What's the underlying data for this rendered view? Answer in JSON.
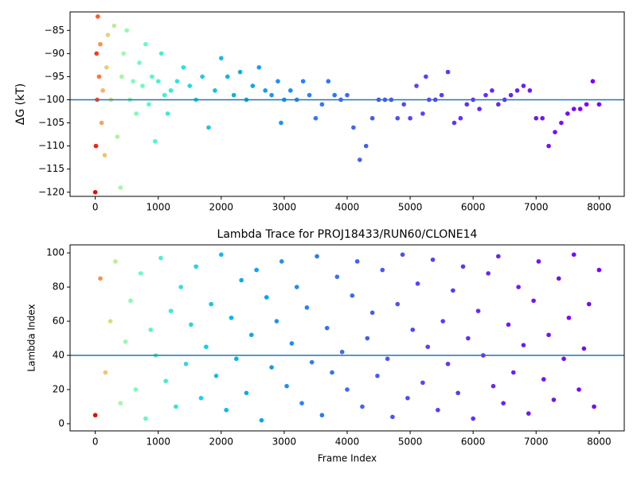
{
  "chart_data": [
    {
      "type": "scatter",
      "ylabel": "ΔG (kT)",
      "colormap": "rainbow_r",
      "x": [
        0,
        10,
        20,
        30,
        40,
        60,
        80,
        100,
        120,
        150,
        180,
        200,
        250,
        300,
        350,
        400,
        420,
        450,
        500,
        550,
        600,
        650,
        700,
        750,
        800,
        850,
        900,
        950,
        1000,
        1050,
        1100,
        1150,
        1200,
        1300,
        1400,
        1500,
        1600,
        1700,
        1800,
        1900,
        2000,
        2100,
        2200,
        2300,
        2400,
        2500,
        2600,
        2700,
        2800,
        2900,
        2950,
        3000,
        3100,
        3200,
        3300,
        3400,
        3500,
        3600,
        3700,
        3800,
        3900,
        4000,
        4100,
        4200,
        4300,
        4400,
        4500,
        4600,
        4700,
        4800,
        4900,
        5000,
        5100,
        5200,
        5250,
        5300,
        5400,
        5500,
        5600,
        5700,
        5800,
        5900,
        6000,
        6100,
        6200,
        6300,
        6400,
        6500,
        6600,
        6700,
        6800,
        6900,
        7000,
        7100,
        7200,
        7300,
        7400,
        7500,
        7600,
        7700,
        7800,
        7900,
        8000
      ],
      "values": [
        -120,
        -110,
        -90,
        -100,
        -82,
        -95,
        -88,
        -105,
        -98,
        -112,
        -93,
        -86,
        -100,
        -84,
        -108,
        -119,
        -95,
        -90,
        -85,
        -100,
        -96,
        -103,
        -92,
        -97,
        -88,
        -101,
        -95,
        -109,
        -96,
        -90,
        -99,
        -103,
        -98,
        -96,
        -93,
        -97,
        -100,
        -95,
        -106,
        -98,
        -91,
        -95,
        -99,
        -94,
        -100,
        -97,
        -93,
        -98,
        -99,
        -96,
        -105,
        -100,
        -98,
        -100,
        -96,
        -99,
        -104,
        -101,
        -96,
        -99,
        -100,
        -99,
        -106,
        -113,
        -110,
        -104,
        -100,
        -100,
        -100,
        -104,
        -101,
        -104,
        -97,
        -103,
        -95,
        -100,
        -100,
        -99,
        -94,
        -105,
        -104,
        -101,
        -100,
        -102,
        -99,
        -98,
        -101,
        -100,
        -99,
        -98,
        -97,
        -98,
        -104,
        -104,
        -110,
        -107,
        -105,
        -103,
        -102,
        -102,
        -101,
        -96,
        -101
      ],
      "hline": -100,
      "xlim": [
        -400,
        8400
      ],
      "ylim": [
        -120.9,
        -81.0
      ],
      "xticks": [
        0,
        1000,
        2000,
        3000,
        4000,
        5000,
        6000,
        7000,
        8000
      ],
      "yticks": [
        {
          "value": -85,
          "label": "−85"
        },
        {
          "value": -90,
          "label": "−90"
        },
        {
          "value": -95,
          "label": "−95"
        },
        {
          "value": -100,
          "label": "−100"
        },
        {
          "value": -105,
          "label": "−105"
        },
        {
          "value": -110,
          "label": "−110"
        },
        {
          "value": -115,
          "label": "−115"
        },
        {
          "value": -120,
          "label": "−120"
        }
      ]
    },
    {
      "type": "scatter",
      "title": "Lambda Trace for PROJ18433/RUN60/CLONE14",
      "xlabel": "Frame Index",
      "ylabel": "Lambda Index",
      "colormap": "rainbow_r",
      "x": [
        0,
        80,
        160,
        240,
        320,
        400,
        480,
        560,
        640,
        720,
        800,
        880,
        960,
        1040,
        1120,
        1200,
        1280,
        1360,
        1440,
        1520,
        1600,
        1680,
        1760,
        1840,
        1920,
        2000,
        2080,
        2160,
        2240,
        2320,
        2400,
        2480,
        2560,
        2640,
        2720,
        2800,
        2880,
        2960,
        3040,
        3120,
        3200,
        3280,
        3360,
        3440,
        3520,
        3600,
        3680,
        3760,
        3840,
        3920,
        4000,
        4080,
        4160,
        4240,
        4320,
        4400,
        4480,
        4560,
        4640,
        4720,
        4800,
        4880,
        4960,
        5040,
        5120,
        5200,
        5280,
        5360,
        5440,
        5520,
        5600,
        5680,
        5760,
        5840,
        5920,
        6000,
        6080,
        6160,
        6240,
        6320,
        6400,
        6480,
        6560,
        6640,
        6720,
        6800,
        6880,
        6960,
        7040,
        7120,
        7200,
        7280,
        7360,
        7440,
        7520,
        7600,
        7680,
        7760,
        7840,
        7920,
        8000
      ],
      "values": [
        5,
        85,
        30,
        60,
        95,
        12,
        48,
        72,
        20,
        88,
        3,
        55,
        40,
        97,
        25,
        66,
        10,
        80,
        35,
        58,
        92,
        15,
        45,
        70,
        28,
        99,
        8,
        62,
        38,
        84,
        18,
        52,
        90,
        2,
        74,
        33,
        60,
        95,
        22,
        47,
        80,
        12,
        68,
        36,
        98,
        5,
        56,
        30,
        86,
        42,
        20,
        75,
        95,
        10,
        50,
        65,
        28,
        90,
        38,
        4,
        70,
        99,
        15,
        55,
        82,
        24,
        45,
        96,
        8,
        60,
        35,
        78,
        18,
        92,
        50,
        3,
        66,
        40,
        88,
        22,
        98,
        12,
        58,
        30,
        80,
        46,
        6,
        72,
        95,
        26,
        52,
        14,
        85,
        38,
        62,
        99,
        20,
        44,
        70,
        10,
        90
      ],
      "hline": 40,
      "xlim": [
        -400,
        8400
      ],
      "ylim": [
        -4.2,
        104.7
      ],
      "xticks": [
        0,
        1000,
        2000,
        3000,
        4000,
        5000,
        6000,
        7000,
        8000
      ],
      "yticks": [
        0,
        20,
        40,
        60,
        80,
        100
      ]
    }
  ]
}
